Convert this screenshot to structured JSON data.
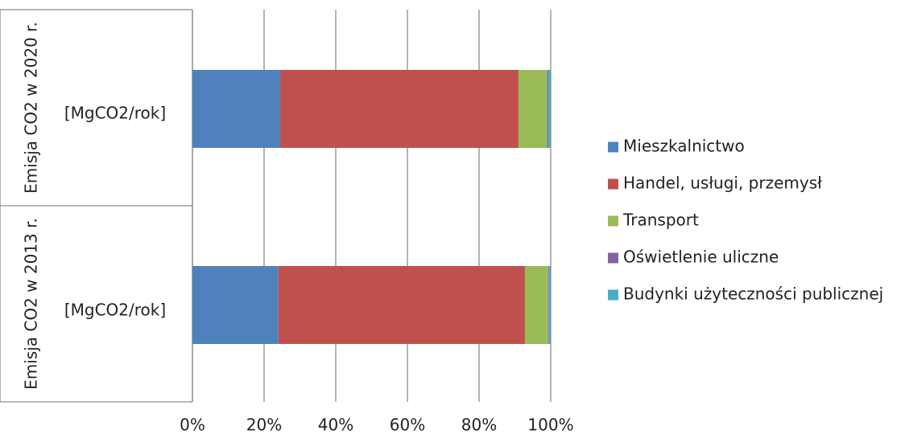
{
  "chart_data": {
    "type": "bar",
    "orientation": "horizontal",
    "stacked": "percent",
    "groups": [
      "Emisja CO2 w 2020 r.",
      "Emisja CO2 w 2013 r."
    ],
    "categories": [
      "[MgCO2/rok]",
      "[MgCO2/rok]"
    ],
    "series": [
      {
        "name": "Mieszkalnictwo",
        "color": "#4F81BD",
        "values": [
          24.5,
          24.0
        ]
      },
      {
        "name": "Handel, usługi, przemysł",
        "color": "#C0504D",
        "values": [
          66.5,
          68.8
        ]
      },
      {
        "name": "Transport",
        "color": "#9BBB59",
        "values": [
          8.0,
          6.5
        ]
      },
      {
        "name": "Oświetlenie uliczne",
        "color": "#8064A2",
        "values": [
          0.3,
          0.2
        ]
      },
      {
        "name": "Budynki użyteczności publicznej",
        "color": "#4BACC6",
        "values": [
          0.7,
          0.5
        ]
      }
    ],
    "xticks": [
      "0%",
      "20%",
      "40%",
      "60%",
      "80%",
      "100%"
    ],
    "xlim": [
      0,
      100
    ],
    "grid": true,
    "legend": "right"
  }
}
